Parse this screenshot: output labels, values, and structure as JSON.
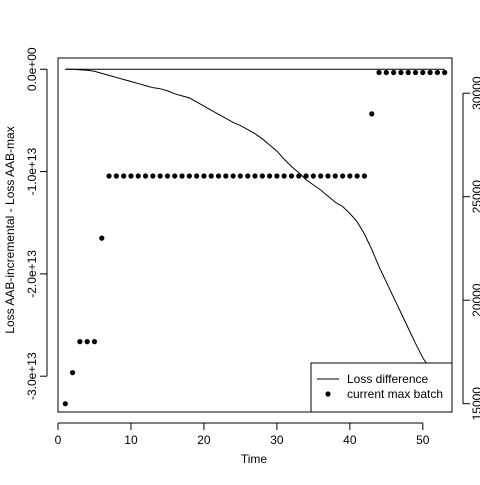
{
  "chart_data": {
    "type": "line",
    "title": "",
    "xlabel": "Time",
    "ylabel": "Loss AAB-incremental - Loss AAB-max",
    "ylabel_right": "",
    "xlim": [
      0,
      54
    ],
    "ylim": [
      -33500000000000,
      1100000000000
    ],
    "ylim_right": [
      14600000000000,
      31700000000000
    ],
    "x_ticks": [
      0,
      10,
      20,
      30,
      40,
      50
    ],
    "x_tick_labels": [
      "0",
      "10",
      "20",
      "30",
      "40",
      "50"
    ],
    "y_ticks": [
      0,
      -10000000000000,
      -20000000000000,
      -30000000000000
    ],
    "y_tick_labels": [
      "0.0e+00",
      "-1.0e+13",
      "-2.0e+13",
      "-3.0e+13"
    ],
    "y_right_ticks": [
      15000,
      20000,
      25000,
      30000
    ],
    "y_right_tick_labels": [
      "15000",
      "20000",
      "25000",
      "30000"
    ],
    "legend_position": "bottom-right",
    "legend": [
      {
        "label": "Loss difference",
        "symbol": "line"
      },
      {
        "label": "current max batch",
        "symbol": "point"
      }
    ],
    "series": [
      {
        "name": "Loss difference",
        "axis": "left",
        "style": "line",
        "color": "#000000",
        "x": [
          1,
          2,
          3,
          4,
          5,
          6,
          7,
          8,
          9,
          10,
          11,
          12,
          13,
          14,
          15,
          16,
          17,
          18,
          19,
          20,
          21,
          22,
          23,
          24,
          25,
          26,
          27,
          28,
          29,
          30,
          31,
          32,
          33,
          34,
          35,
          36,
          37,
          38,
          39,
          40,
          41,
          42,
          43,
          44,
          45,
          46,
          47,
          48,
          49,
          50,
          51,
          52,
          53
        ],
        "values": [
          0,
          0,
          -0.05,
          -0.1,
          -0.2,
          -0.4,
          -0.6,
          -0.8,
          -1.0,
          -1.2,
          -1.4,
          -1.6,
          -1.8,
          -1.9,
          -2.1,
          -2.4,
          -2.6,
          -2.8,
          -3.2,
          -3.6,
          -4.0,
          -4.4,
          -4.8,
          -5.2,
          -5.5,
          -5.9,
          -6.3,
          -6.8,
          -7.4,
          -8.0,
          -8.8,
          -9.5,
          -10.1,
          -10.8,
          -11.3,
          -11.8,
          -12.4,
          -13.0,
          -13.4,
          -14.1,
          -14.9,
          -16.1,
          -17.6,
          -19.3,
          -20.8,
          -22.3,
          -23.8,
          -25.3,
          -26.8,
          -28.2,
          -29.3,
          -30.6,
          -30.9
        ]
      },
      {
        "name": "current max batch",
        "axis": "right",
        "style": "points",
        "color": "#000000",
        "x": [
          1,
          2,
          3,
          4,
          5,
          6,
          7,
          8,
          9,
          10,
          11,
          12,
          13,
          14,
          15,
          16,
          17,
          18,
          19,
          20,
          21,
          22,
          23,
          24,
          25,
          26,
          27,
          28,
          29,
          30,
          31,
          32,
          33,
          34,
          35,
          36,
          37,
          38,
          39,
          40,
          41,
          42,
          43,
          44,
          45,
          46,
          47,
          48,
          49,
          50,
          51,
          52,
          53
        ],
        "values": [
          15000,
          16500,
          18000,
          18000,
          18000,
          23000,
          26000,
          26000,
          26000,
          26000,
          26000,
          26000,
          26000,
          26000,
          26000,
          26000,
          26000,
          26000,
          26000,
          26000,
          26000,
          26000,
          26000,
          26000,
          26000,
          26000,
          26000,
          26000,
          26000,
          26000,
          26000,
          26000,
          26000,
          26000,
          26000,
          26000,
          26000,
          26000,
          26000,
          26000,
          26000,
          26000,
          29000,
          31000,
          31000,
          31000,
          31000,
          31000,
          31000,
          31000,
          31000,
          31000,
          31000
        ]
      },
      {
        "name": "",
        "axis": "left",
        "style": "line",
        "color": "#000000",
        "x": [
          1,
          53
        ],
        "values": [
          0,
          0
        ]
      }
    ]
  }
}
